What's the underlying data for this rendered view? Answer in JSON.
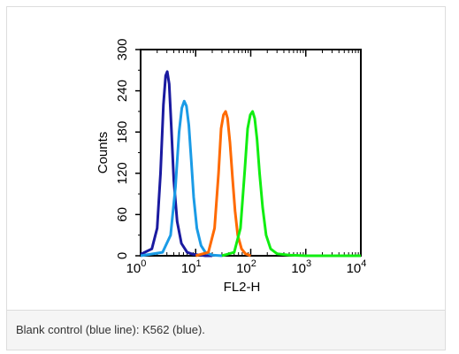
{
  "caption": "Blank control (blue line): K562 (blue).",
  "chart_data": {
    "type": "line",
    "xlabel": "FL2-H",
    "ylabel": "Counts",
    "xscale": "log",
    "xlim": [
      1,
      10000
    ],
    "ylim": [
      0,
      300
    ],
    "x_tick_labels": [
      {
        "base": "10",
        "exp": "0"
      },
      {
        "base": "10",
        "exp": "1"
      },
      {
        "base": "10",
        "exp": "2"
      },
      {
        "base": "10",
        "exp": "3"
      },
      {
        "base": "10",
        "exp": "4"
      }
    ],
    "y_ticks": [
      0,
      60,
      120,
      180,
      240,
      300
    ],
    "y_tick_labels": [
      "0",
      "60",
      "120",
      "180",
      "240",
      "300"
    ],
    "grid": false,
    "series": [
      {
        "color": "#1a1aa0",
        "x": [
          1.0,
          1.6,
          2.0,
          2.3,
          2.6,
          2.85,
          3.05,
          3.3,
          3.6,
          4.0,
          4.6,
          5.5,
          7.0,
          9.0,
          12.0,
          15.0,
          20.0
        ],
        "y": [
          2,
          10,
          40,
          120,
          220,
          262,
          268,
          250,
          190,
          110,
          50,
          18,
          5,
          2,
          1,
          0,
          0
        ]
      },
      {
        "color": "#1a9be6",
        "x": [
          1.0,
          2.5,
          3.5,
          4.3,
          5.0,
          5.6,
          6.2,
          6.8,
          7.5,
          8.3,
          9.2,
          10.5,
          12.5,
          15.0,
          20.0,
          30.0
        ],
        "y": [
          0,
          5,
          30,
          100,
          180,
          215,
          225,
          218,
          190,
          140,
          85,
          40,
          15,
          5,
          1,
          0
        ]
      },
      {
        "color": "#ff6a00",
        "x": [
          10.0,
          17.0,
          22.0,
          26.0,
          29.0,
          32.0,
          35.0,
          38.0,
          42.0,
          47.0,
          52.0,
          58.0,
          68.0,
          80.0,
          100.0
        ],
        "y": [
          0,
          5,
          40,
          120,
          185,
          205,
          210,
          200,
          165,
          110,
          65,
          30,
          10,
          3,
          0
        ]
      },
      {
        "color": "#11ee11",
        "x": [
          30.0,
          50.0,
          65.0,
          78.0,
          88.0,
          98.0,
          108.0,
          118.0,
          130.0,
          145.0,
          165.0,
          190.0,
          230.0,
          300.0,
          500.0,
          1000.0,
          3000.0,
          10000.0
        ],
        "y": [
          0,
          5,
          40,
          125,
          185,
          205,
          210,
          200,
          170,
          120,
          70,
          30,
          10,
          3,
          1,
          0,
          0,
          0
        ]
      }
    ]
  }
}
